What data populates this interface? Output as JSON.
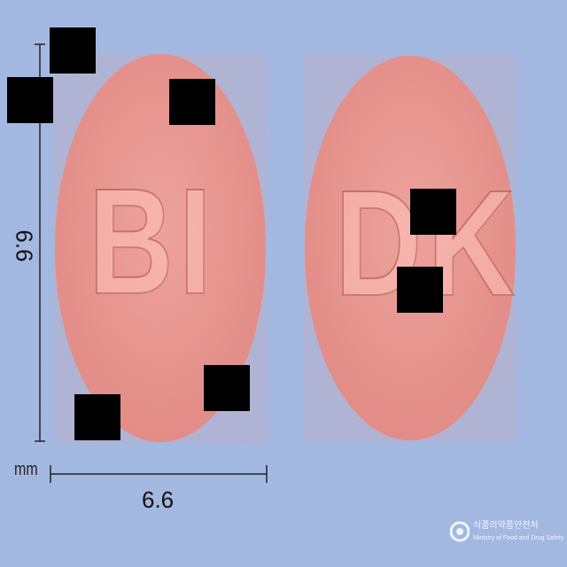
{
  "image": {
    "background_color": "#a8bde6",
    "pill_color": "#e89790",
    "left_pill": {
      "imprint": "BI"
    },
    "right_pill": {
      "imprint": "DK"
    }
  },
  "dimensions": {
    "height_value": "6.6",
    "width_value": "6.6",
    "unit": "mm"
  },
  "watermark": {
    "title": "식품의약품안전처",
    "subtitle": "Ministry of Food and Drug Safety"
  }
}
